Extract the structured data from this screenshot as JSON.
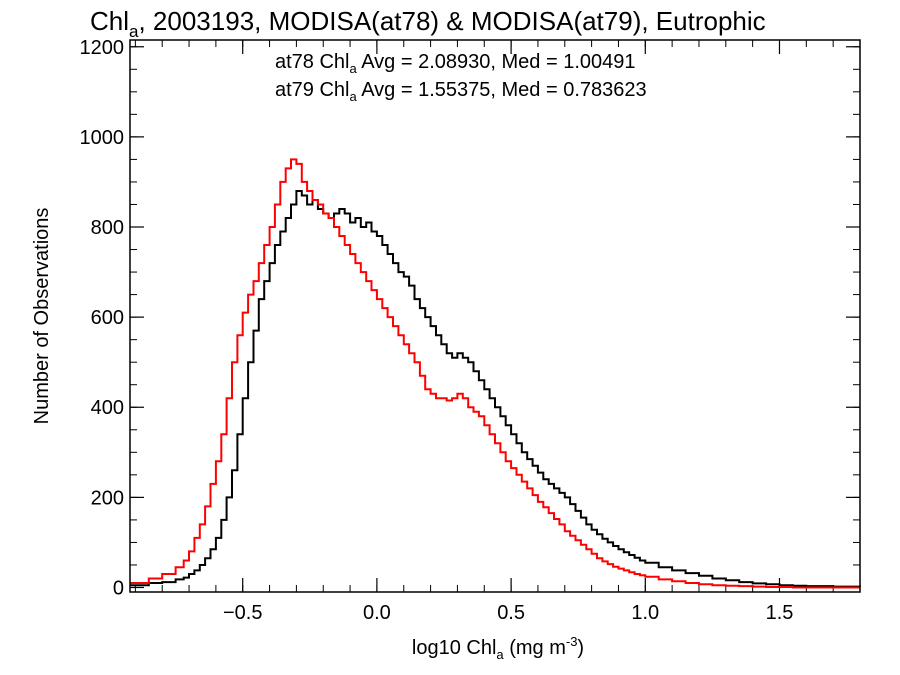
{
  "chart_data": {
    "type": "line",
    "step": true,
    "title": {
      "prefix": "Chl",
      "sub": "a",
      "rest": ", 2003193, MODISA(at78) & MODISA(at79), Eutrophic"
    },
    "xlabel": {
      "prefix": "log10 Chl",
      "sub": "a",
      "unit_pre": " (mg m",
      "unit_sup": "-3",
      "unit_post": ")"
    },
    "ylabel": "Number of Observations",
    "xlim": [
      -0.92,
      1.8
    ],
    "ylim": [
      -10,
      1215
    ],
    "xticks_major": [
      -0.5,
      0.0,
      0.5,
      1.0,
      1.5
    ],
    "xtick_labels": [
      "−0.5",
      "0.0",
      "0.5",
      "1.0",
      "1.5"
    ],
    "xticks_minor_step": 0.1,
    "yticks_major": [
      0,
      200,
      400,
      600,
      800,
      1000,
      1200
    ],
    "ytick_labels": [
      "0",
      "200",
      "400",
      "600",
      "800",
      "1000",
      "1200"
    ],
    "yticks_minor_step": 50,
    "grid": false,
    "colors": {
      "at78": "#000000",
      "at79": "#ff0000"
    },
    "annotations": [
      {
        "series": "at78",
        "prefix": "at78 Chl",
        "sub": "a",
        "rest": " Avg = 2.08930, Med = 1.00491",
        "color": "#000000"
      },
      {
        "series": "at79",
        "prefix": "at79 Chl",
        "sub": "a",
        "rest": " Avg = 1.55375, Med = 0.783623",
        "color": "#ff0000"
      }
    ],
    "series": [
      {
        "name": "at78",
        "color": "#000000",
        "x": [
          -0.92,
          -0.85,
          -0.8,
          -0.75,
          -0.72,
          -0.7,
          -0.68,
          -0.66,
          -0.64,
          -0.62,
          -0.6,
          -0.58,
          -0.56,
          -0.54,
          -0.52,
          -0.5,
          -0.48,
          -0.46,
          -0.44,
          -0.42,
          -0.4,
          -0.38,
          -0.36,
          -0.34,
          -0.32,
          -0.3,
          -0.28,
          -0.26,
          -0.24,
          -0.22,
          -0.2,
          -0.18,
          -0.16,
          -0.14,
          -0.12,
          -0.1,
          -0.08,
          -0.06,
          -0.04,
          -0.02,
          0.0,
          0.02,
          0.04,
          0.06,
          0.08,
          0.1,
          0.12,
          0.14,
          0.16,
          0.18,
          0.2,
          0.22,
          0.24,
          0.26,
          0.28,
          0.3,
          0.32,
          0.34,
          0.36,
          0.38,
          0.4,
          0.42,
          0.44,
          0.46,
          0.48,
          0.5,
          0.52,
          0.54,
          0.56,
          0.58,
          0.6,
          0.62,
          0.64,
          0.66,
          0.68,
          0.7,
          0.72,
          0.74,
          0.76,
          0.78,
          0.8,
          0.82,
          0.84,
          0.86,
          0.88,
          0.9,
          0.92,
          0.94,
          0.96,
          0.98,
          1.0,
          1.05,
          1.1,
          1.15,
          1.2,
          1.25,
          1.3,
          1.35,
          1.4,
          1.45,
          1.5,
          1.55,
          1.6,
          1.7,
          1.8
        ],
        "y": [
          5,
          10,
          12,
          18,
          22,
          30,
          38,
          50,
          65,
          85,
          110,
          150,
          200,
          260,
          340,
          420,
          500,
          570,
          640,
          680,
          720,
          760,
          790,
          820,
          850,
          880,
          870,
          850,
          860,
          840,
          830,
          820,
          830,
          840,
          830,
          810,
          820,
          800,
          810,
          790,
          780,
          760,
          740,
          720,
          700,
          690,
          670,
          640,
          620,
          600,
          580,
          560,
          540,
          520,
          510,
          520,
          510,
          500,
          480,
          460,
          440,
          420,
          400,
          380,
          360,
          340,
          320,
          300,
          285,
          270,
          255,
          240,
          230,
          220,
          210,
          200,
          185,
          170,
          155,
          140,
          128,
          118,
          108,
          100,
          92,
          85,
          78,
          72,
          66,
          60,
          55,
          45,
          38,
          32,
          26,
          20,
          16,
          12,
          9,
          7,
          5,
          4,
          3,
          2,
          1
        ]
      },
      {
        "name": "at79",
        "color": "#ff0000",
        "x": [
          -0.92,
          -0.85,
          -0.8,
          -0.75,
          -0.72,
          -0.7,
          -0.68,
          -0.66,
          -0.64,
          -0.62,
          -0.6,
          -0.58,
          -0.56,
          -0.54,
          -0.52,
          -0.5,
          -0.48,
          -0.46,
          -0.44,
          -0.42,
          -0.4,
          -0.38,
          -0.36,
          -0.34,
          -0.32,
          -0.3,
          -0.28,
          -0.26,
          -0.24,
          -0.22,
          -0.2,
          -0.18,
          -0.16,
          -0.14,
          -0.12,
          -0.1,
          -0.08,
          -0.06,
          -0.04,
          -0.02,
          0.0,
          0.02,
          0.04,
          0.06,
          0.08,
          0.1,
          0.12,
          0.14,
          0.16,
          0.18,
          0.2,
          0.22,
          0.24,
          0.26,
          0.28,
          0.3,
          0.32,
          0.34,
          0.36,
          0.38,
          0.4,
          0.42,
          0.44,
          0.46,
          0.48,
          0.5,
          0.52,
          0.54,
          0.56,
          0.58,
          0.6,
          0.62,
          0.64,
          0.66,
          0.68,
          0.7,
          0.72,
          0.74,
          0.76,
          0.78,
          0.8,
          0.82,
          0.84,
          0.86,
          0.88,
          0.9,
          0.92,
          0.94,
          0.96,
          0.98,
          1.0,
          1.05,
          1.1,
          1.15,
          1.2,
          1.25,
          1.3,
          1.35,
          1.4,
          1.45,
          1.5,
          1.55,
          1.6,
          1.7,
          1.8
        ],
        "y": [
          10,
          20,
          30,
          45,
          60,
          80,
          110,
          140,
          180,
          230,
          280,
          340,
          420,
          500,
          560,
          610,
          650,
          680,
          720,
          760,
          800,
          850,
          900,
          930,
          950,
          940,
          900,
          880,
          860,
          850,
          830,
          820,
          800,
          780,
          760,
          740,
          720,
          700,
          680,
          660,
          640,
          620,
          600,
          580,
          560,
          540,
          520,
          500,
          470,
          440,
          430,
          420,
          420,
          415,
          420,
          430,
          420,
          400,
          390,
          380,
          360,
          340,
          320,
          300,
          280,
          265,
          250,
          235,
          220,
          205,
          190,
          178,
          165,
          152,
          140,
          125,
          115,
          105,
          95,
          85,
          75,
          65,
          58,
          52,
          46,
          42,
          38,
          34,
          30,
          27,
          24,
          18,
          14,
          10,
          7,
          5,
          4,
          3,
          2,
          1,
          1,
          0,
          0,
          0,
          0
        ]
      }
    ]
  }
}
